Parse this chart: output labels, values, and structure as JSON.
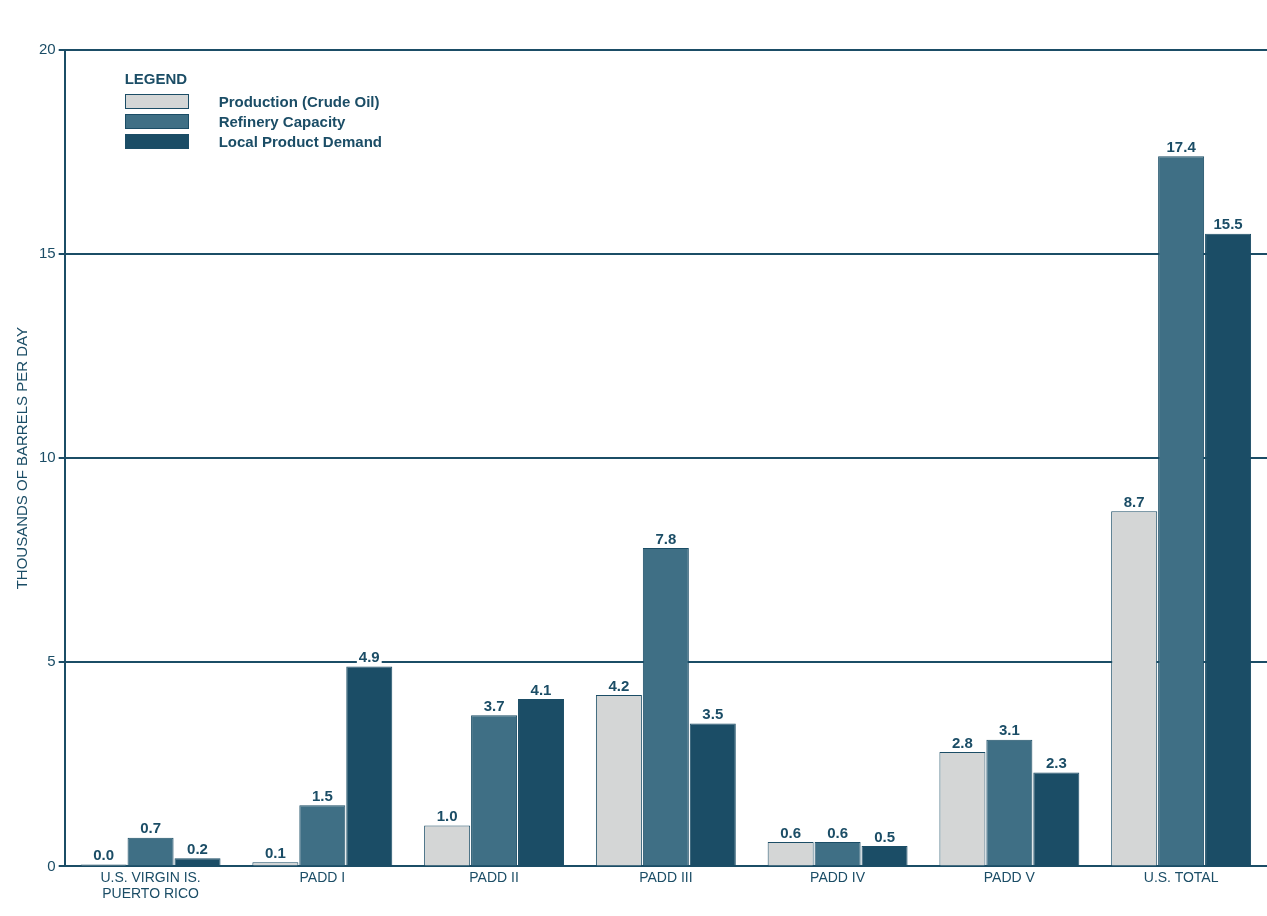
{
  "chart_data": {
    "type": "bar",
    "ylabel": "THOUSANDS OF BARRELS PER DAY",
    "legend_title": "LEGEND",
    "categories": [
      "U.S. VIRGIN IS.\nPUERTO RICO",
      "PADD I",
      "PADD II",
      "PADD III",
      "PADD IV",
      "PADD V",
      "U.S. TOTAL"
    ],
    "series": [
      {
        "name": "Production (Crude Oil)",
        "color": "#d4d6d6",
        "values": [
          0.0,
          0.1,
          1.0,
          4.2,
          0.6,
          2.8,
          8.7
        ],
        "value_labels": [
          "0.0",
          "0.1",
          "1.0",
          "4.2",
          "0.6",
          "2.8",
          "8.7"
        ]
      },
      {
        "name": "Refinery Capacity",
        "color": "#3f6f85",
        "values": [
          0.7,
          1.5,
          3.7,
          7.8,
          0.6,
          3.1,
          17.4
        ],
        "value_labels": [
          "0.7",
          "1.5",
          "3.7",
          "7.8",
          "0.6",
          "3.1",
          "17.4"
        ]
      },
      {
        "name": "Local Product Demand",
        "color": "#1b4d66",
        "values": [
          0.2,
          4.9,
          4.1,
          3.5,
          0.5,
          2.3,
          15.5
        ],
        "value_labels": [
          "0.2",
          "4.9",
          "4.1",
          "3.5",
          "0.5",
          "2.3",
          "15.5"
        ]
      }
    ],
    "ylim": [
      0,
      20
    ],
    "yticks": [
      0,
      5,
      10,
      15,
      20
    ],
    "grid": "y",
    "legend": "top left"
  }
}
